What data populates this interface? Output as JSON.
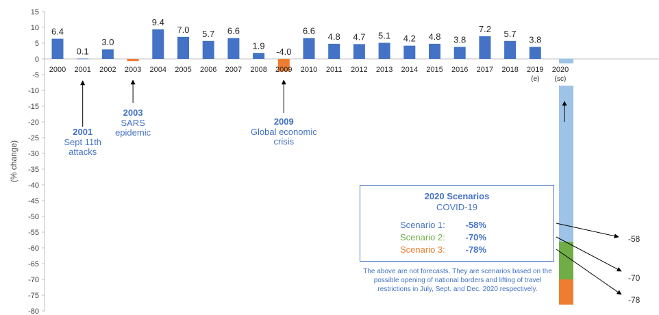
{
  "chart_data": {
    "type": "bar",
    "ylabel": "(% change)",
    "ylim": [
      -80,
      15
    ],
    "yticks": [
      15,
      10,
      5,
      0,
      -5,
      -10,
      -15,
      -20,
      -25,
      -30,
      -35,
      -40,
      -45,
      -50,
      -55,
      -60,
      -65,
      -70,
      -75,
      -80
    ],
    "categories": [
      "2000",
      "2001",
      "2002",
      "2003",
      "2004",
      "2005",
      "2006",
      "2007",
      "2008",
      "2009",
      "2010",
      "2011",
      "2012",
      "2013",
      "2014",
      "2015",
      "2016",
      "2017",
      "2018",
      "2019\n(e)",
      "2020\n(sc)"
    ],
    "values": [
      6.4,
      0.1,
      3.0,
      -0.7,
      9.4,
      7.0,
      5.7,
      6.6,
      1.9,
      -4.0,
      6.6,
      4.8,
      4.7,
      5.1,
      4.2,
      4.8,
      3.8,
      7.2,
      5.7,
      3.8,
      null
    ],
    "value_labels": [
      "6.4",
      "0.1",
      "3.0",
      "",
      "9.4",
      "7.0",
      "5.7",
      "6.6",
      "1.9",
      "-4.0",
      "6.6",
      "4.8",
      "4.7",
      "5.1",
      "4.2",
      "4.8",
      "3.8",
      "7.2",
      "5.7",
      "3.8",
      ""
    ],
    "highlight_years": [
      "2003",
      "2009"
    ],
    "colors": {
      "bar": "#4472c4",
      "highlight": "#ed7d31",
      "scenario1": "#9dc3e6",
      "scenario2": "#70ad47",
      "scenario3": "#ed7d31",
      "text_blue": "#4472c4"
    },
    "scenarios_2020": [
      {
        "name": "Scenario 1",
        "value": -58,
        "label": "-58",
        "color": "#9dc3e6"
      },
      {
        "name": "Scenario 2",
        "value": -70,
        "label": "-70",
        "color": "#70ad47"
      },
      {
        "name": "Scenario 3",
        "value": -78,
        "label": "-78",
        "color": "#ed7d31"
      }
    ],
    "annotations": [
      {
        "year": "2001",
        "title": "2001",
        "lines": [
          "Sept 11th",
          "attacks"
        ]
      },
      {
        "year": "2003",
        "title": "2003",
        "lines": [
          "SARS",
          "epidemic"
        ]
      },
      {
        "year": "2009",
        "title": "2009",
        "lines": [
          "Global economic",
          "crisis"
        ]
      }
    ]
  },
  "scenario_box": {
    "title": "2020 Scenarios",
    "subtitle": "COVID-19",
    "rows": [
      {
        "label": "Scenario 1:",
        "value": "-58%",
        "color": "#4472c4"
      },
      {
        "label": "Scenario 2:",
        "value": "-70%",
        "color": "#70ad47"
      },
      {
        "label": "Scenario 3:",
        "value": "-78%",
        "color": "#ed7d31"
      }
    ],
    "note": "The above are not forecasts. They are scenarios based on the possible opening of national borders and lifting of travel restrictions in July, Sept. and Dec. 2020 respectively."
  }
}
